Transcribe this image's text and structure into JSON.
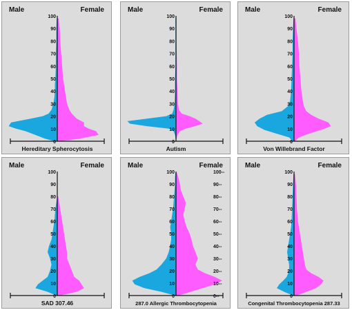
{
  "colors": {
    "male": "#1aa7e0",
    "female": "#ff5cff",
    "axis": "#111111",
    "panel_bg": "#dcdcdc"
  },
  "chart_data": [
    {
      "type": "area",
      "title": "Hereditary Spherocytosis",
      "left_label": "Male",
      "right_label": "Female",
      "ylim": [
        0,
        100
      ],
      "y_ticks": [
        "0",
        "10",
        "20",
        "30",
        "40",
        "50",
        "60",
        "70",
        "80",
        "90",
        "100"
      ],
      "y": [
        0,
        2,
        5,
        8,
        10,
        12,
        15,
        18,
        20,
        22,
        25,
        30,
        35,
        40,
        45,
        50,
        60,
        70,
        80,
        90,
        98
      ],
      "series": [
        {
          "name": "Male",
          "values": [
            0.05,
            0.25,
            0.45,
            0.65,
            0.85,
            1.0,
            0.95,
            0.55,
            0.3,
            0.18,
            0.12,
            0.08,
            0.06,
            0.05,
            0.05,
            0.04,
            0.03,
            0.03,
            0.02,
            0.02,
            0.01
          ]
        },
        {
          "name": "Female",
          "values": [
            0.05,
            0.45,
            0.85,
            0.8,
            0.65,
            0.55,
            0.55,
            0.4,
            0.35,
            0.3,
            0.25,
            0.2,
            0.18,
            0.16,
            0.14,
            0.12,
            0.1,
            0.08,
            0.06,
            0.05,
            0.03
          ]
        }
      ]
    },
    {
      "type": "area",
      "title": "Autism",
      "left_label": "Male",
      "right_label": "Female",
      "ylim": [
        0,
        100
      ],
      "y_ticks": [
        "0",
        "10",
        "20",
        "30",
        "40",
        "50",
        "60",
        "70",
        "80",
        "90",
        "100"
      ],
      "y": [
        0,
        5,
        8,
        10,
        12,
        14,
        16,
        18,
        20,
        22,
        25,
        30,
        40,
        50,
        60,
        80,
        98
      ],
      "series": [
        {
          "name": "Male",
          "values": [
            0,
            0.02,
            0.05,
            0.15,
            0.6,
            0.95,
            1.0,
            0.6,
            0.2,
            0.08,
            0.05,
            0.03,
            0.02,
            0.02,
            0.01,
            0.01,
            0.01
          ]
        },
        {
          "name": "Female",
          "values": [
            0,
            0.03,
            0.08,
            0.2,
            0.4,
            0.55,
            0.48,
            0.4,
            0.28,
            0.12,
            0.06,
            0.04,
            0.03,
            0.02,
            0.02,
            0.01,
            0.01
          ]
        }
      ]
    },
    {
      "type": "area",
      "title": "Von Willebrand Factor",
      "left_label": "Male",
      "right_label": "Female",
      "ylim": [
        0,
        100
      ],
      "y_ticks": [
        "0",
        "10",
        "20",
        "30",
        "40",
        "50",
        "60",
        "70",
        "80",
        "90",
        "100"
      ],
      "y": [
        0,
        3,
        6,
        9,
        12,
        15,
        18,
        21,
        24,
        28,
        32,
        40,
        50,
        60,
        70,
        80,
        90,
        98
      ],
      "series": [
        {
          "name": "Male",
          "values": [
            0.02,
            0.1,
            0.35,
            0.6,
            0.75,
            0.8,
            0.7,
            0.55,
            0.25,
            0.12,
            0.08,
            0.06,
            0.05,
            0.04,
            0.03,
            0.03,
            0.02,
            0.01
          ]
        },
        {
          "name": "Female",
          "values": [
            0.02,
            0.1,
            0.3,
            0.55,
            0.75,
            0.7,
            0.5,
            0.35,
            0.25,
            0.2,
            0.18,
            0.15,
            0.13,
            0.11,
            0.1,
            0.08,
            0.05,
            0.03
          ]
        }
      ]
    },
    {
      "type": "area",
      "title": "SAD 307.46",
      "left_label": "Male",
      "right_label": "Female",
      "ylim": [
        0,
        100
      ],
      "y_ticks": [
        "0",
        "10",
        "20",
        "30",
        "40",
        "50",
        "60",
        "70",
        "80",
        "90",
        "100"
      ],
      "y": [
        0,
        3,
        6,
        9,
        12,
        15,
        20,
        25,
        30,
        35,
        40,
        45,
        50,
        55,
        60,
        65,
        70,
        75,
        80
      ],
      "series": [
        {
          "name": "Male",
          "values": [
            0.02,
            0.2,
            0.45,
            0.4,
            0.3,
            0.2,
            0.15,
            0.12,
            0.15,
            0.2,
            0.17,
            0.12,
            0.1,
            0.08,
            0.06,
            0.05,
            0.04,
            0.02,
            0.0
          ]
        },
        {
          "name": "Female",
          "values": [
            0.05,
            0.4,
            0.55,
            0.5,
            0.45,
            0.35,
            0.3,
            0.25,
            0.2,
            0.2,
            0.18,
            0.16,
            0.14,
            0.12,
            0.1,
            0.08,
            0.06,
            0.04,
            0.02
          ]
        }
      ]
    },
    {
      "type": "area",
      "title": "287.0 Allergic Thrombocytopenia",
      "left_label": "Male",
      "right_label": "Female",
      "ylim": [
        0,
        100
      ],
      "y_ticks": [
        "0",
        "10",
        "20",
        "30",
        "40",
        "50",
        "60",
        "70",
        "80",
        "90",
        "100"
      ],
      "y": [
        0,
        3,
        6,
        9,
        12,
        15,
        18,
        21,
        25,
        30,
        35,
        40,
        45,
        50,
        55,
        60,
        65,
        70,
        75,
        80,
        85,
        90,
        95,
        99
      ],
      "series": [
        {
          "name": "Male",
          "values": [
            0.02,
            0.3,
            0.65,
            0.85,
            0.9,
            0.75,
            0.55,
            0.4,
            0.3,
            0.2,
            0.15,
            0.12,
            0.1,
            0.1,
            0.12,
            0.1,
            0.08,
            0.06,
            0.05,
            0.04,
            0.03,
            0.02,
            0.02,
            0.01
          ]
        },
        {
          "name": "Female",
          "values": [
            0.05,
            0.3,
            0.55,
            0.8,
            0.95,
            0.8,
            0.6,
            0.45,
            0.4,
            0.45,
            0.4,
            0.35,
            0.32,
            0.28,
            0.22,
            0.18,
            0.15,
            0.18,
            0.2,
            0.15,
            0.1,
            0.08,
            0.05,
            0.02
          ]
        }
      ]
    },
    {
      "type": "area",
      "title": "Congenital Thrombocytopenia  287.33",
      "left_label": "Male",
      "right_label": "Female",
      "ylim": [
        0,
        100
      ],
      "y_ticks": [
        "0",
        "10",
        "20",
        "30",
        "40",
        "50",
        "60",
        "70",
        "80",
        "90",
        "100"
      ],
      "y": [
        0,
        3,
        6,
        9,
        12,
        15,
        18,
        21,
        25,
        30,
        35,
        40,
        45,
        50,
        55,
        60,
        70,
        80,
        90,
        98
      ],
      "series": [
        {
          "name": "Male",
          "values": [
            0.02,
            0.2,
            0.35,
            0.3,
            0.22,
            0.15,
            0.12,
            0.1,
            0.1,
            0.12,
            0.14,
            0.12,
            0.1,
            0.08,
            0.06,
            0.05,
            0.04,
            0.03,
            0.02,
            0.01
          ]
        },
        {
          "name": "Female",
          "values": [
            0.05,
            0.25,
            0.45,
            0.55,
            0.6,
            0.5,
            0.35,
            0.25,
            0.22,
            0.2,
            0.18,
            0.16,
            0.14,
            0.12,
            0.1,
            0.08,
            0.06,
            0.05,
            0.04,
            0.02
          ]
        }
      ]
    }
  ]
}
